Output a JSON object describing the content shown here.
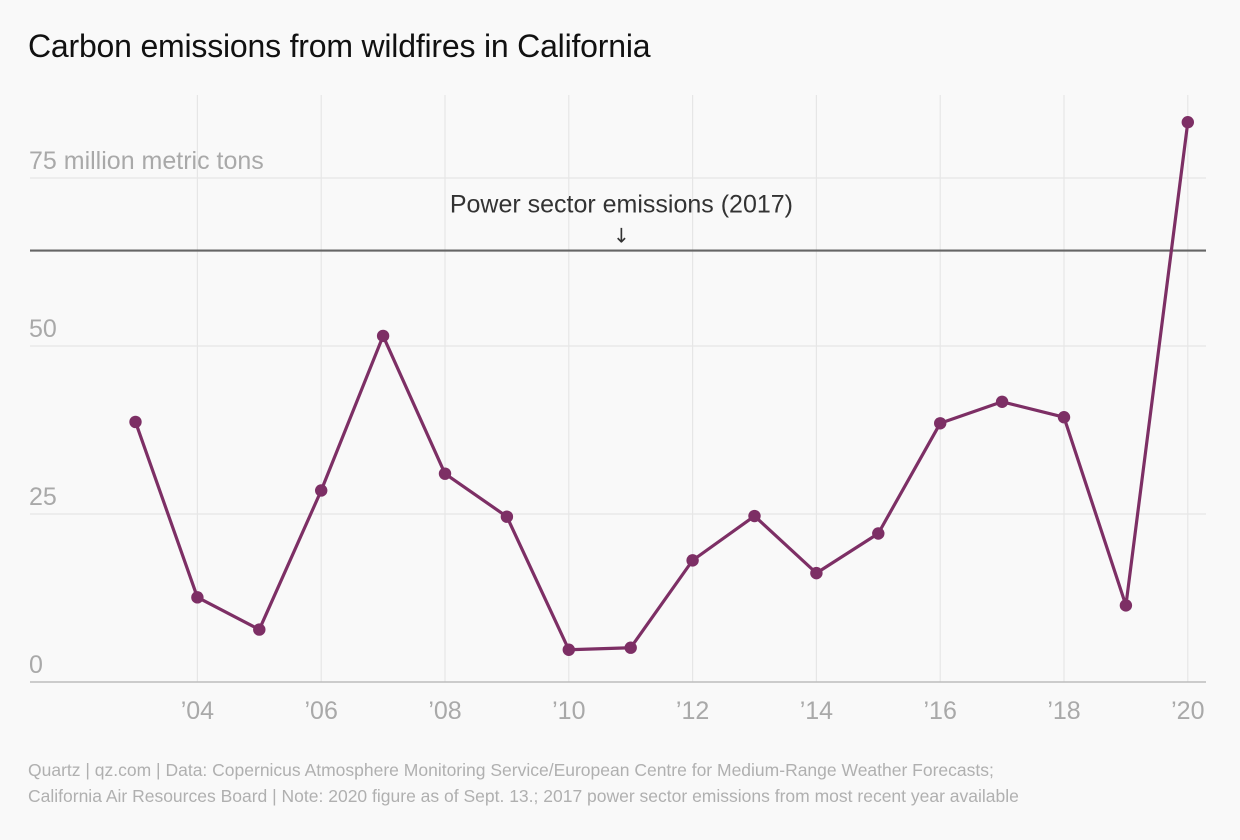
{
  "chart_data": {
    "type": "line",
    "title": "Carbon emissions from wildfires in California",
    "ylabel": "",
    "xlabel": "",
    "y_tick_labels": [
      "0",
      "25",
      "50",
      "75 million metric tons"
    ],
    "y_ticks": [
      0,
      25,
      50,
      75
    ],
    "ylim": [
      0,
      85
    ],
    "xlim": [
      2002,
      2020.3
    ],
    "x_ticks": [
      2004,
      2006,
      2008,
      2010,
      2012,
      2014,
      2016,
      2018,
      2020
    ],
    "x_tick_labels": [
      "’04",
      "’06",
      "’08",
      "’10",
      "’12",
      "’14",
      "’16",
      "’18",
      "’20"
    ],
    "grid": true,
    "series": [
      {
        "x": [
          2003,
          2004,
          2005,
          2006,
          2007,
          2008,
          2009,
          2010,
          2011,
          2012,
          2013,
          2014,
          2015,
          2016,
          2017,
          2018,
          2019,
          2020
        ],
        "values": [
          38.7,
          12.6,
          7.8,
          28.5,
          51.5,
          31.0,
          24.6,
          4.8,
          5.1,
          18.1,
          24.7,
          16.2,
          22.1,
          38.5,
          41.7,
          39.4,
          11.4,
          83.3
        ],
        "color": "#7d2f65"
      }
    ],
    "annotations": [
      {
        "text": "Power sector emissions (2017)",
        "arrow": "↓",
        "y": 64.2,
        "x": 2010.85
      }
    ],
    "reference_line_color": "#666666"
  },
  "footer": {
    "line1": "Quartz | qz.com | Data: Copernicus Atmosphere Monitoring Service/European Centre for Medium-Range Weather Forecasts;",
    "line2": "California Air Resources Board | Note: 2020 figure as of Sept. 13.; 2017 power sector emissions from most recent year available"
  }
}
